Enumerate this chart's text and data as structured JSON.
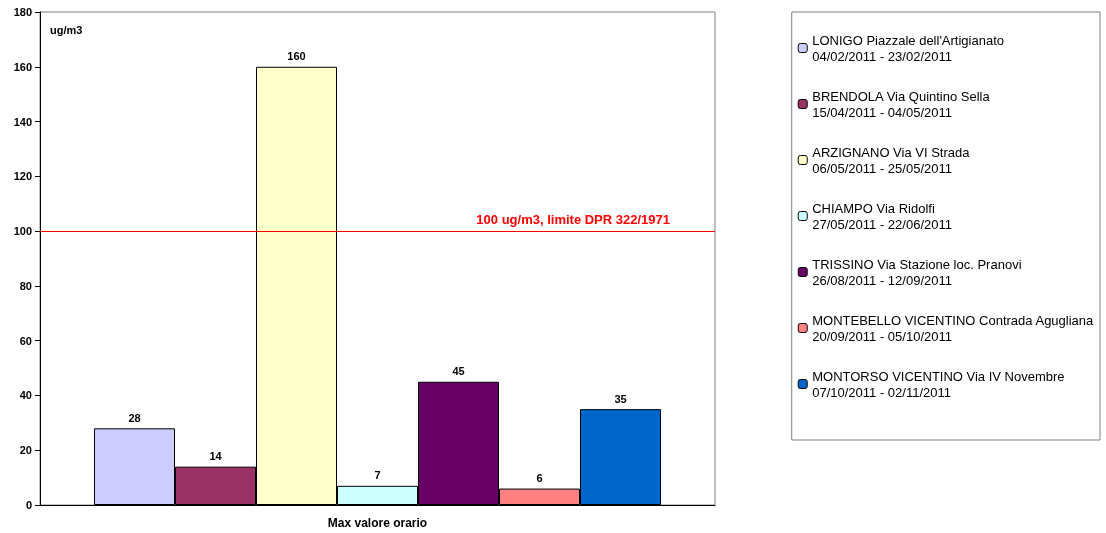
{
  "chart_data": {
    "type": "bar",
    "ylabel": "ug/m3",
    "categories": [
      "Max valore orario"
    ],
    "series": [
      {
        "name": "LONIGO Piazzale dell'Artigianato\n04/02/2011 - 23/02/2011",
        "color": "#ccccff",
        "values": [
          28
        ]
      },
      {
        "name": "BRENDOLA Via Quintino Sella\n15/04/2011 - 04/05/2011",
        "color": "#993366",
        "values": [
          14
        ]
      },
      {
        "name": "ARZIGNANO Via VI Strada\n06/05/2011 - 25/05/2011",
        "color": "#ffffcc",
        "values": [
          160
        ]
      },
      {
        "name": "CHIAMPO Via Ridolfi\n27/05/2011 - 22/06/2011",
        "color": "#ccffff",
        "values": [
          7
        ]
      },
      {
        "name": "TRISSINO Via Stazione loc. Pranovi\n26/08/2011 - 12/09/2011",
        "color": "#660066",
        "values": [
          45
        ]
      },
      {
        "name": "MONTEBELLO VICENTINO Contrada Agugliana\n20/09/2011 - 05/10/2011",
        "color": "#ff8080",
        "values": [
          6
        ]
      },
      {
        "name": "MONTORSO VICENTINO Via IV Novembre\n07/10/2011 - 02/11/2011",
        "color": "#0066cc",
        "values": [
          35
        ]
      }
    ],
    "ylim": [
      0,
      180
    ],
    "yticks": [
      0,
      20,
      40,
      60,
      80,
      100,
      120,
      140,
      160,
      180
    ],
    "ref_lines": [
      {
        "axis": "y",
        "value": 100,
        "label": "100 ug/m3, limite DPR 322/1971",
        "color": "#ff0000"
      }
    ],
    "data_labels": true,
    "grid": false,
    "legend": "right"
  }
}
